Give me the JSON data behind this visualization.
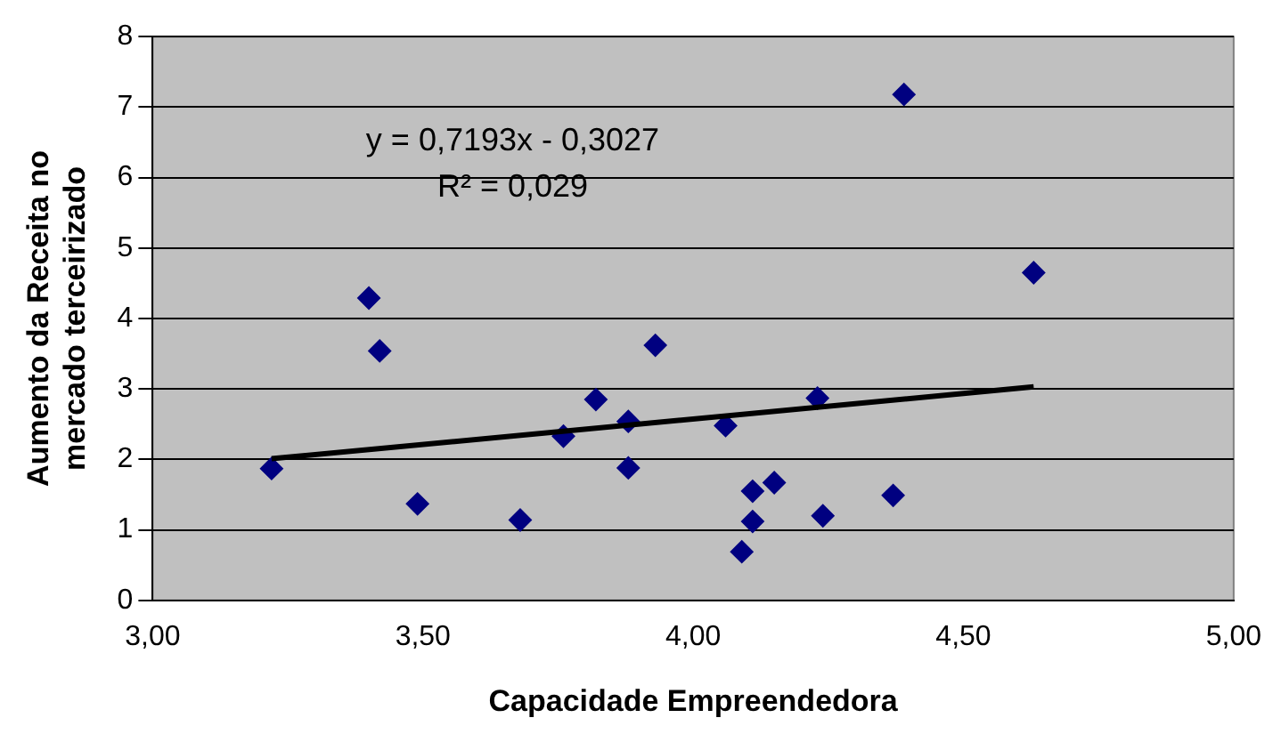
{
  "chart_data": {
    "type": "scatter",
    "xlabel": "Capacidade Empreendedora",
    "ylabel": "Aumento da Receita no mercado terceirizado",
    "series": [
      {
        "color": "#000080",
        "marker": "diamond",
        "x": [
          3.22,
          3.4,
          3.42,
          3.49,
          3.68,
          3.76,
          3.82,
          3.88,
          3.88,
          3.93,
          4.06,
          4.39,
          4.63,
          4.23,
          4.11,
          4.15,
          4.11,
          4.09,
          4.24,
          4.37
        ],
        "values": [
          1.87,
          4.29,
          3.54,
          1.37,
          1.14,
          2.33,
          2.85,
          2.54,
          1.88,
          3.62,
          2.48,
          7.18,
          4.65,
          2.87,
          1.55,
          1.67,
          1.12,
          0.69,
          1.2,
          1.49
        ]
      },
      {
        "type": "line",
        "color": "#000000",
        "marker": "none",
        "x": [
          3.22,
          4.63
        ],
        "values": [
          2.01,
          3.03
        ]
      }
    ],
    "xlim": [
      3,
      5
    ],
    "xticks": [
      {
        "value": 3,
        "label": "3,00"
      },
      {
        "value": 3.5,
        "label": "3,50"
      },
      {
        "value": 4,
        "label": "4,00"
      },
      {
        "value": 4.5,
        "label": "4,50"
      },
      {
        "value": 5,
        "label": "5,00"
      }
    ],
    "ylim": [
      0,
      8
    ],
    "yticks": [
      0,
      1,
      2,
      3,
      4,
      5,
      6,
      7,
      8
    ],
    "grid": "y",
    "legend": false,
    "annotations": [
      "y = 0,7193x - 0,3027",
      "R² = 0,029"
    ]
  }
}
